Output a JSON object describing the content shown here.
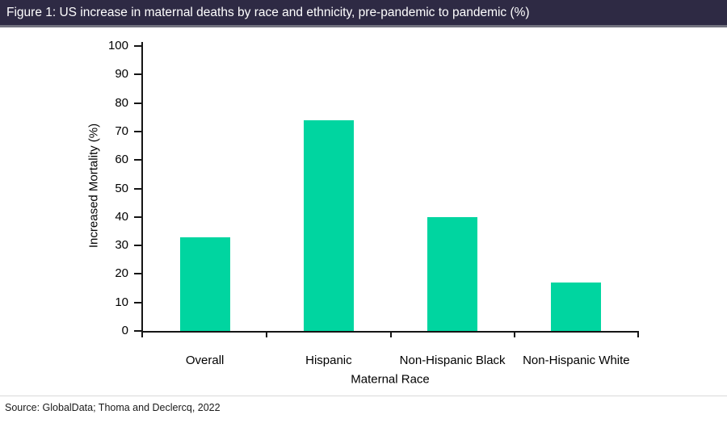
{
  "header": {
    "title": "Figure 1: US increase in maternal deaths by race and ethnicity, pre-pandemic to pandemic (%)"
  },
  "footer": {
    "source": "Source: GlobalData; Thoma and Declercq, 2022"
  },
  "colors": {
    "header_bg": "#2e2a44",
    "header_text": "#ffffff",
    "bar": "#00d5a0",
    "axis": "#151515"
  },
  "chart_data": {
    "type": "bar",
    "title": "Figure 1: US increase in maternal deaths by race and ethnicity, pre-pandemic to pandemic (%)",
    "categories": [
      "Overall",
      "Hispanic",
      "Non-Hispanic Black",
      "Non-Hispanic White"
    ],
    "values": [
      33,
      74,
      40,
      17
    ],
    "xlabel": "Maternal Race",
    "ylabel": "Increased Mortality (%)",
    "ylim": [
      0,
      100
    ],
    "ytick_step": 10,
    "grid": false,
    "legend": null,
    "bar_color": "#00d5a0"
  }
}
